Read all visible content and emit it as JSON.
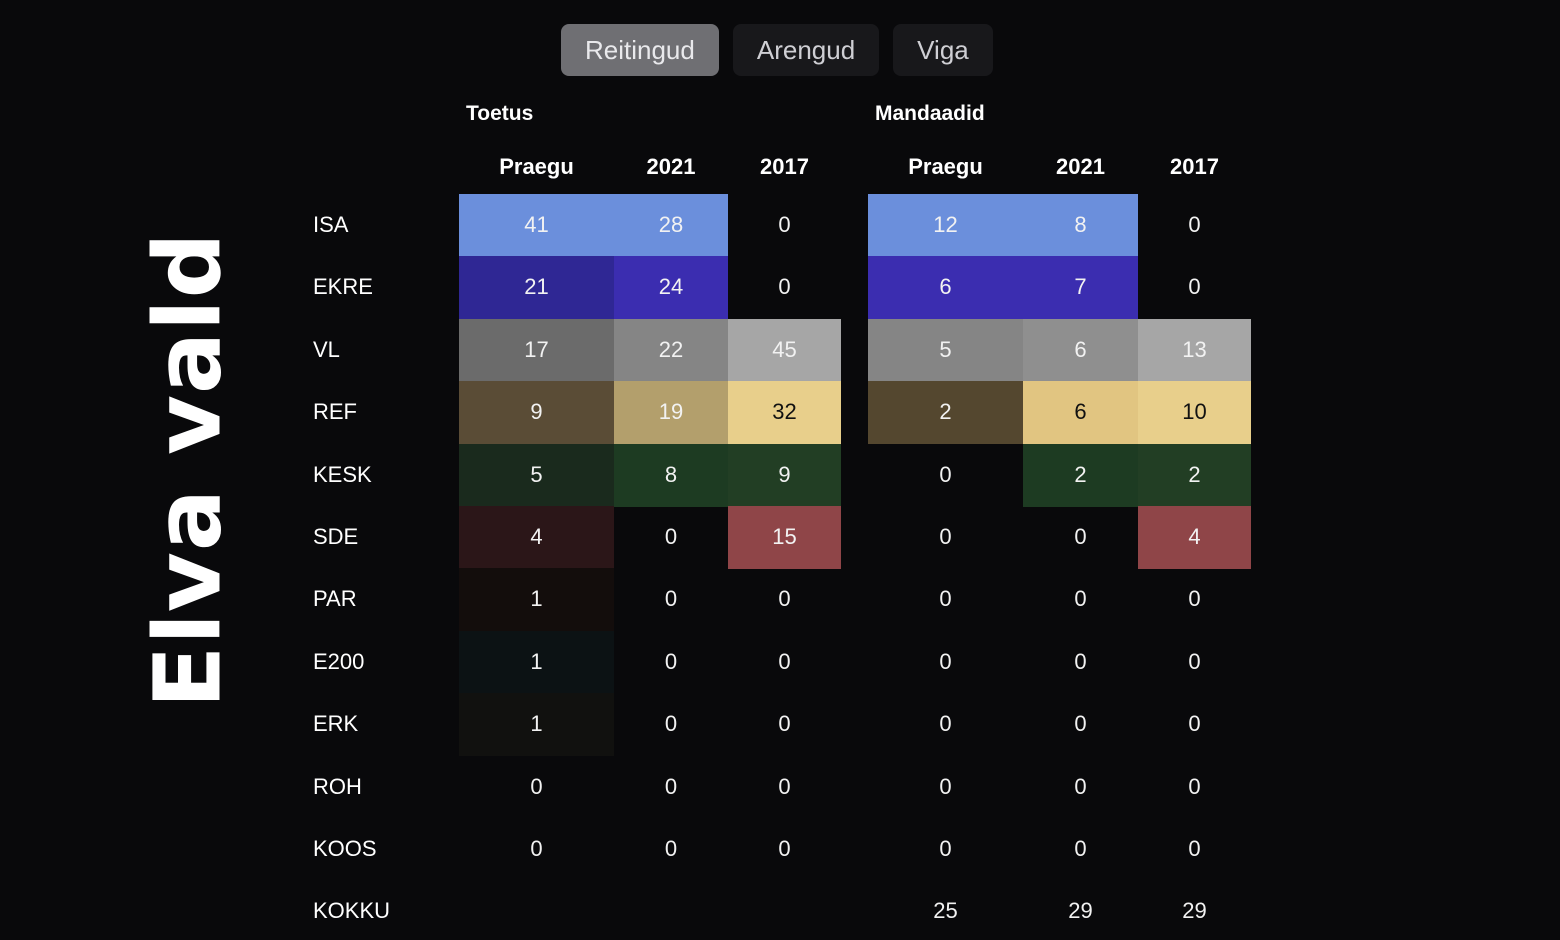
{
  "title": "Elva vald",
  "tabs": [
    "Reitingud",
    "Arengud",
    "Viga"
  ],
  "active_tab": 0,
  "groups": {
    "support": "Toetus",
    "seats": "Mandaadid"
  },
  "columns": [
    "Praegu",
    "2021",
    "2017"
  ],
  "rows": [
    {
      "party": "ISA",
      "support": [
        41,
        28,
        0
      ],
      "seats": [
        12,
        8,
        0
      ]
    },
    {
      "party": "EKRE",
      "support": [
        21,
        24,
        0
      ],
      "seats": [
        6,
        7,
        0
      ]
    },
    {
      "party": "VL",
      "support": [
        17,
        22,
        45
      ],
      "seats": [
        5,
        6,
        13
      ]
    },
    {
      "party": "REF",
      "support": [
        9,
        19,
        32
      ],
      "seats": [
        2,
        6,
        10
      ]
    },
    {
      "party": "KESK",
      "support": [
        5,
        8,
        9
      ],
      "seats": [
        0,
        2,
        2
      ]
    },
    {
      "party": "SDE",
      "support": [
        4,
        0,
        15
      ],
      "seats": [
        0,
        0,
        4
      ]
    },
    {
      "party": "PAR",
      "support": [
        1,
        0,
        0
      ],
      "seats": [
        0,
        0,
        0
      ]
    },
    {
      "party": "E200",
      "support": [
        1,
        0,
        0
      ],
      "seats": [
        0,
        0,
        0
      ]
    },
    {
      "party": "ERK",
      "support": [
        1,
        0,
        0
      ],
      "seats": [
        0,
        0,
        0
      ]
    },
    {
      "party": "ROH",
      "support": [
        0,
        0,
        0
      ],
      "seats": [
        0,
        0,
        0
      ]
    },
    {
      "party": "KOOS",
      "support": [
        0,
        0,
        0
      ],
      "seats": [
        0,
        0,
        0
      ]
    }
  ],
  "total": {
    "label": "KOKKU",
    "seats": [
      25,
      29,
      29
    ]
  },
  "colors": {
    "background": "#09090b",
    "tab_active": "#6f6f73",
    "tab_inactive": "#18181b",
    "ISA": {
      "support": [
        "#6b8fdc",
        "#6b8fdc",
        ""
      ],
      "seats": [
        "#6b8fdc",
        "#6b8fdc",
        ""
      ]
    },
    "EKRE": {
      "support": [
        "#2f2794",
        "#3b2db0",
        ""
      ],
      "seats": [
        "#3b2db0",
        "#3b2db0",
        ""
      ]
    },
    "VL": {
      "support": [
        "#6b6b6b",
        "#858585",
        "#a6a6a6"
      ],
      "seats": [
        "#858585",
        "#8f8f8f",
        "#a6a6a6"
      ]
    },
    "REF": {
      "support": [
        "#5a4c36",
        "#b39f6c",
        "#e8cf8b"
      ],
      "seats": [
        "#54472f",
        "#e1c581",
        "#e8cf8b"
      ]
    },
    "KESK": {
      "support": [
        "#1a2a1d",
        "#1d3b22",
        "#223e24"
      ],
      "seats": [
        "",
        "#1d3b22",
        "#223e24"
      ]
    },
    "SDE": {
      "support": [
        "#2b1618",
        "",
        "#8f4548"
      ],
      "seats": [
        "",
        "",
        "#8f4548"
      ]
    },
    "PAR": {
      "support": [
        "#130d0c",
        "",
        ""
      ],
      "seats": [
        "",
        "",
        ""
      ]
    },
    "E200": {
      "support": [
        "#0c1214",
        "",
        ""
      ],
      "seats": [
        "",
        "",
        ""
      ]
    },
    "ERK": {
      "support": [
        "#11110f",
        "",
        ""
      ],
      "seats": [
        "",
        "",
        ""
      ]
    }
  }
}
